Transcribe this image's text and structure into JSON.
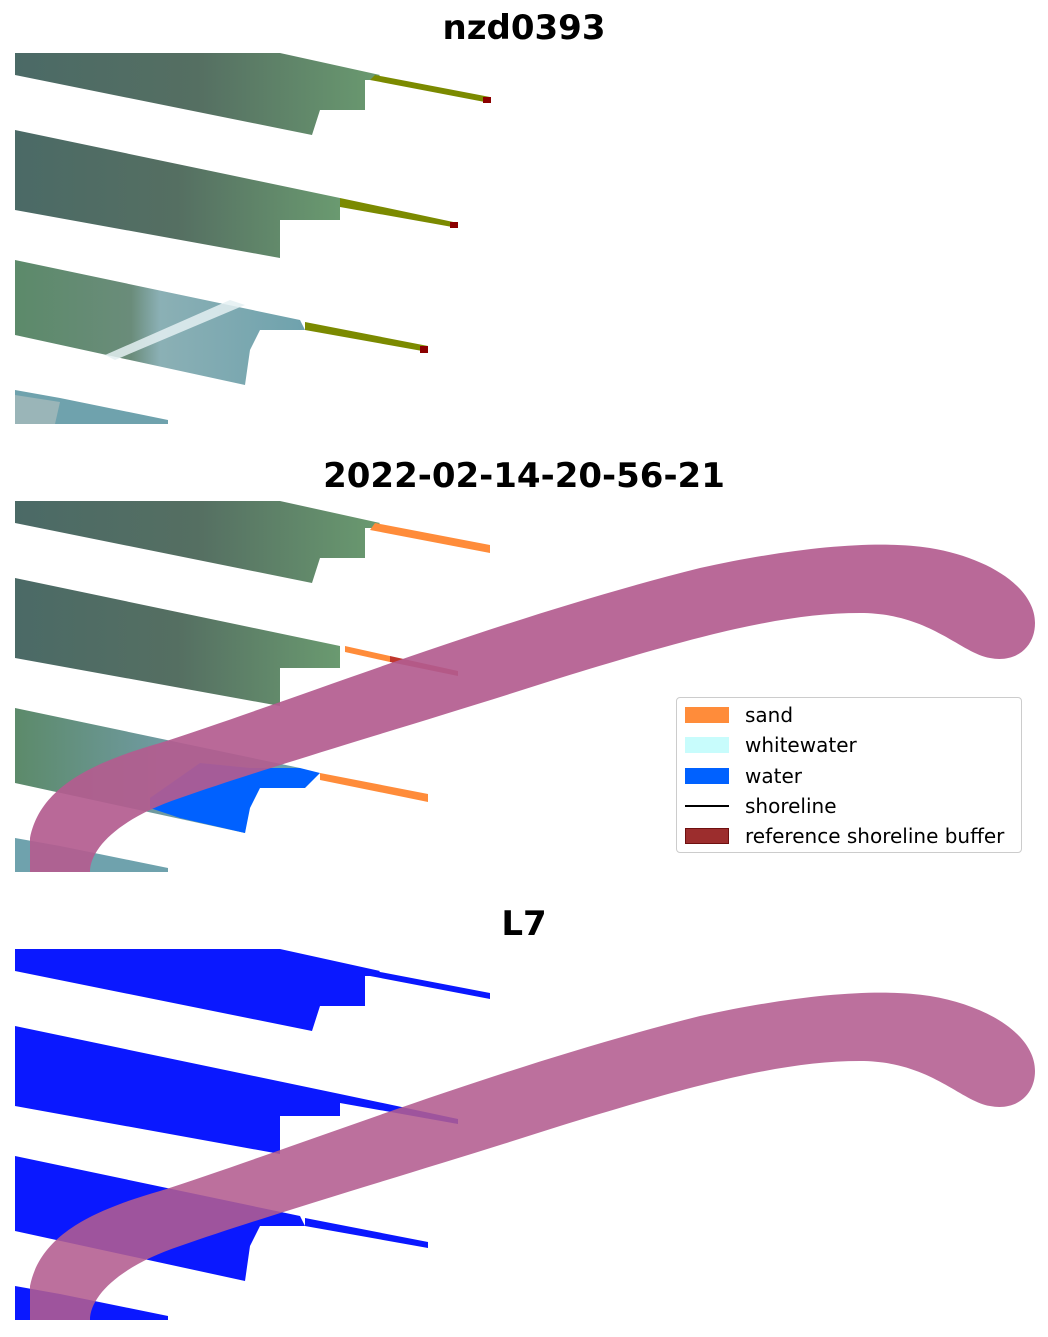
{
  "panels": {
    "top_title": "nzd0393",
    "middle_title": "2022-02-14-20-56-21",
    "bottom_title": "L7"
  },
  "legend": {
    "items": [
      {
        "label": "sand",
        "kind": "patch",
        "color": "#ff8c3a"
      },
      {
        "label": "whitewater",
        "kind": "patch",
        "color": "#c8fcfc"
      },
      {
        "label": "water",
        "kind": "patch",
        "color": "#0061ff"
      },
      {
        "label": "shoreline",
        "kind": "line",
        "color": "#000000"
      },
      {
        "label": "reference shoreline buffer",
        "kind": "patch",
        "color": "#9c2d2d"
      }
    ]
  },
  "colors": {
    "satellite_dark": "#3d5a55",
    "satellite_green": "#5d8a64",
    "satellite_teal": "#6fa4ae",
    "olive_sand": "#7b8a00",
    "sand": "#ff8c3a",
    "water": "#0061ff",
    "buffer": "#b35c8f",
    "l7_blue": "#0a18ff",
    "dark_red": "#8b0000"
  }
}
